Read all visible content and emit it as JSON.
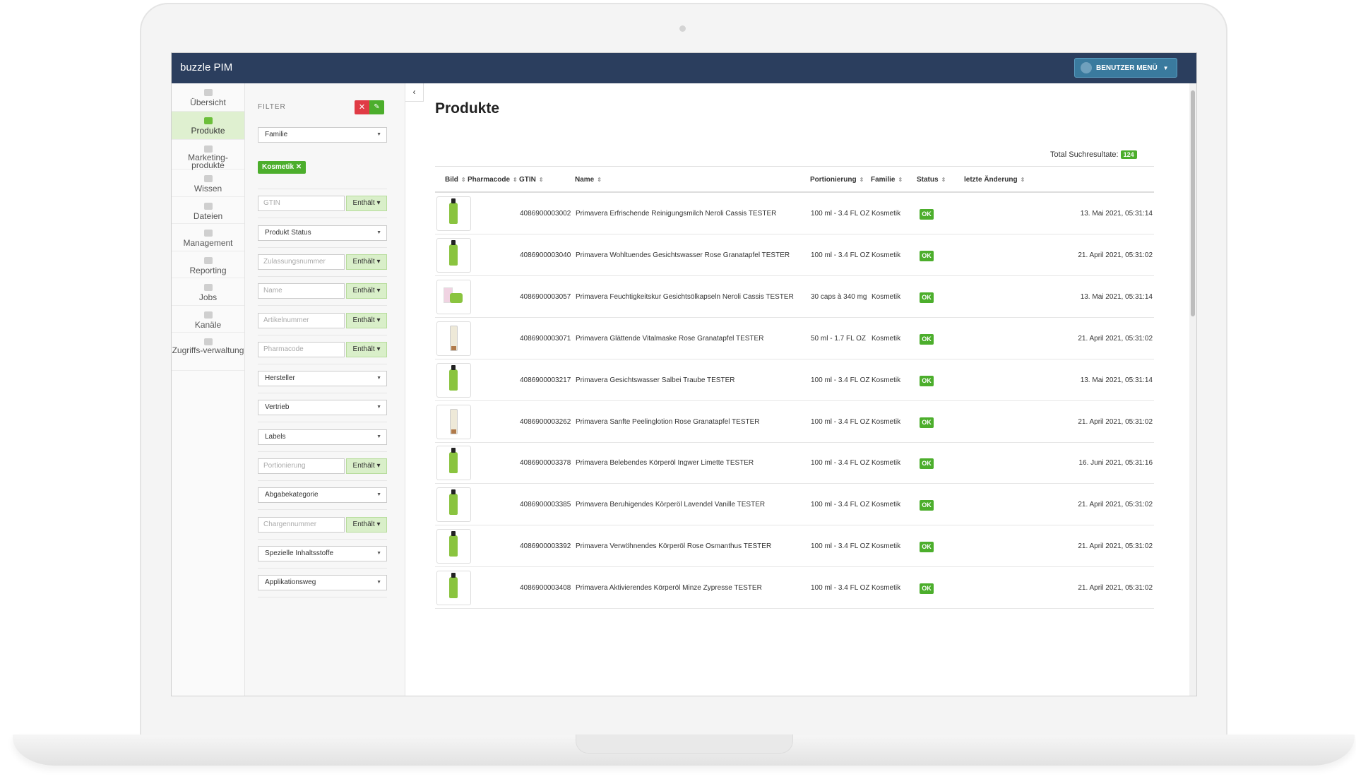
{
  "app": {
    "title": "buzzle PIM",
    "user_menu": "BENUTZER MENÜ"
  },
  "nav": [
    {
      "label": "Übersicht",
      "icon": "home-icon"
    },
    {
      "label": "Produkte",
      "icon": "box-icon",
      "active": true
    },
    {
      "label": "Marketing-produkte",
      "icon": "box-icon"
    },
    {
      "label": "Wissen",
      "icon": "book-icon"
    },
    {
      "label": "Dateien",
      "icon": "files-icon"
    },
    {
      "label": "Management",
      "icon": "cogs-icon"
    },
    {
      "label": "Reporting",
      "icon": "heart-icon"
    },
    {
      "label": "Jobs",
      "icon": "database-icon"
    },
    {
      "label": "Kanäle",
      "icon": "toggle-icon"
    },
    {
      "label": "Zugriffs-verwaltung",
      "icon": "users-icon"
    }
  ],
  "filter": {
    "title": "FILTER",
    "chip": "Kosmetik ✕",
    "operator_label": "Enthält ▾",
    "fields": [
      {
        "type": "select",
        "label": "Familie"
      },
      {
        "type": "input",
        "placeholder": "GTIN"
      },
      {
        "type": "select",
        "label": "Produkt Status"
      },
      {
        "type": "input",
        "placeholder": "Zulassungsnummer"
      },
      {
        "type": "input",
        "placeholder": "Name"
      },
      {
        "type": "input",
        "placeholder": "Artikelnummer"
      },
      {
        "type": "input",
        "placeholder": "Pharmacode"
      },
      {
        "type": "select",
        "label": "Hersteller"
      },
      {
        "type": "select",
        "label": "Vertrieb"
      },
      {
        "type": "select",
        "label": "Labels"
      },
      {
        "type": "input",
        "placeholder": "Portionierung"
      },
      {
        "type": "select",
        "label": "Abgabekategorie"
      },
      {
        "type": "input",
        "placeholder": "Chargennummer"
      },
      {
        "type": "select",
        "label": "Spezielle Inhaltsstoffe"
      },
      {
        "type": "select",
        "label": "Applikationsweg"
      }
    ]
  },
  "main": {
    "title": "Produkte",
    "total_label": "Total Suchresultate:",
    "total_count": "124",
    "columns": [
      "Bild",
      "Pharmacode",
      "GTIN",
      "Name",
      "Portionierung",
      "Familie",
      "Status",
      "letzte Änderung"
    ]
  },
  "rows": [
    {
      "img": "bottle",
      "pharmacode": "",
      "gtin": "4086900003002",
      "name": "Primavera Erfrischende Reinigungsmilch Neroli Cassis TESTER",
      "portion": "100 ml - 3.4 FL OZ",
      "familie": "Kosmetik",
      "status": "OK",
      "date": "13. Mai 2021, 05:31:14"
    },
    {
      "img": "bottle",
      "pharmacode": "",
      "gtin": "4086900003040",
      "name": "Primavera Wohltuendes Gesichtswasser Rose Granatapfel TESTER",
      "portion": "100 ml - 3.4 FL OZ",
      "familie": "Kosmetik",
      "status": "OK",
      "date": "21. April 2021, 05:31:02"
    },
    {
      "img": "jar",
      "pharmacode": "",
      "gtin": "4086900003057",
      "name": "Primavera Feuchtigkeitskur Gesichtsölkapseln Neroli Cassis TESTER",
      "portion": "30 caps à 340 mg",
      "familie": "Kosmetik",
      "status": "OK",
      "date": "13. Mai 2021, 05:31:14"
    },
    {
      "img": "tube",
      "pharmacode": "",
      "gtin": "4086900003071",
      "name": "Primavera Glättende Vitalmaske Rose Granatapfel TESTER",
      "portion": "50 ml - 1.7 FL OZ",
      "familie": "Kosmetik",
      "status": "OK",
      "date": "21. April 2021, 05:31:02"
    },
    {
      "img": "bottle",
      "pharmacode": "",
      "gtin": "4086900003217",
      "name": "Primavera Gesichtswasser Salbei Traube TESTER",
      "portion": "100 ml - 3.4 FL OZ",
      "familie": "Kosmetik",
      "status": "OK",
      "date": "13. Mai 2021, 05:31:14"
    },
    {
      "img": "tube",
      "pharmacode": "",
      "gtin": "4086900003262",
      "name": "Primavera Sanfte Peelinglotion Rose Granatapfel TESTER",
      "portion": "100 ml - 3.4 FL OZ",
      "familie": "Kosmetik",
      "status": "OK",
      "date": "21. April 2021, 05:31:02"
    },
    {
      "img": "bottle",
      "pharmacode": "",
      "gtin": "4086900003378",
      "name": "Primavera Belebendes Körperöl Ingwer Limette TESTER",
      "portion": "100 ml - 3.4 FL OZ",
      "familie": "Kosmetik",
      "status": "OK",
      "date": "16. Juni 2021, 05:31:16"
    },
    {
      "img": "bottle",
      "pharmacode": "",
      "gtin": "4086900003385",
      "name": "Primavera Beruhigendes Körperöl Lavendel Vanille TESTER",
      "portion": "100 ml - 3.4 FL OZ",
      "familie": "Kosmetik",
      "status": "OK",
      "date": "21. April 2021, 05:31:02"
    },
    {
      "img": "bottle",
      "pharmacode": "",
      "gtin": "4086900003392",
      "name": "Primavera Verwöhnendes Körperöl Rose Osmanthus TESTER",
      "portion": "100 ml - 3.4 FL OZ",
      "familie": "Kosmetik",
      "status": "OK",
      "date": "21. April 2021, 05:31:02"
    },
    {
      "img": "bottle",
      "pharmacode": "",
      "gtin": "4086900003408",
      "name": "Primavera Aktivierendes Körperöl Minze Zypresse TESTER",
      "portion": "100 ml - 3.4 FL OZ",
      "familie": "Kosmetik",
      "status": "OK",
      "date": "21. April 2021, 05:31:02"
    }
  ],
  "colors": {
    "topbar": "#2b3e5e",
    "accent": "#4cae2c",
    "danger": "#e03b45"
  }
}
